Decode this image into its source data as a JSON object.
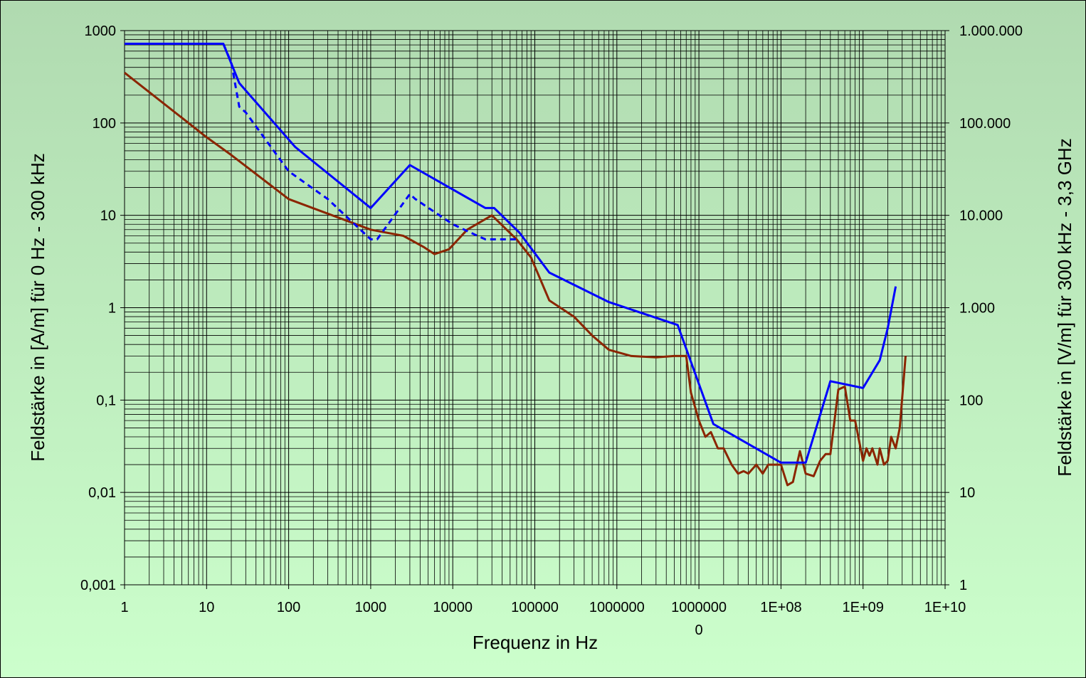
{
  "chart_data": {
    "type": "line",
    "x_label": "Frequenz in Hz",
    "y_label": "Feldstärke in [A/m] für 0 Hz - 300 kHz",
    "y2_label": "Feldstärke in [V/m] für 300 kHz - 3,3 GHz",
    "xscale": "log",
    "yscale": "log",
    "y2scale": "log",
    "grid": true,
    "minor_grid": true,
    "xlim": [
      1,
      10000000000
    ],
    "xticks": [
      1,
      10,
      100,
      1000,
      10000,
      100000,
      1000000,
      10000000,
      {
        "value": 100000000,
        "label": "1E+08"
      },
      {
        "value": 1000000000,
        "label": "1E+09"
      },
      {
        "value": 10000000000,
        "label": "1E+10"
      }
    ],
    "ylim": [
      0.001,
      1000
    ],
    "yticks": [
      {
        "value": 0.001,
        "label": "0,001"
      },
      {
        "value": 0.01,
        "label": "0,01"
      },
      {
        "value": 0.1,
        "label": "0,1"
      },
      1,
      10,
      100,
      1000
    ],
    "y2lim": [
      1,
      1000000
    ],
    "y2ticks": [
      1,
      10,
      100,
      {
        "value": 1000,
        "label": "1.000"
      },
      {
        "value": 10000,
        "label": "10.000"
      },
      {
        "value": 100000,
        "label": "100.000"
      },
      {
        "value": 1000000,
        "label": "1.000.000"
      }
    ],
    "series": [
      {
        "color": "#8b2500",
        "dash": false,
        "x": [
          1,
          10,
          20,
          100,
          1000,
          2500,
          4500,
          6000,
          9000,
          15000,
          30000,
          60000,
          90000,
          150000,
          300000,
          500000,
          800000,
          1500000,
          3000000,
          5000000,
          7000000,
          8000000,
          10000000,
          12000000,
          14000000,
          17000000,
          20000000,
          25000000,
          30000000,
          35000000,
          40000000,
          50000000,
          60000000,
          70000000,
          80000000,
          100000000,
          120000000,
          140000000,
          170000000,
          200000000,
          250000000,
          300000000,
          350000000,
          400000000,
          500000000,
          600000000,
          700000000,
          800000000,
          1000000000,
          1100000000,
          1200000000,
          1300000000,
          1500000000,
          1600000000,
          1800000000,
          2000000000,
          2200000000,
          2500000000,
          2800000000,
          3300000000
        ],
        "values": [
          350,
          70,
          45,
          15,
          7,
          6,
          4.5,
          3.8,
          4.3,
          7,
          10,
          5.5,
          3.5,
          1.2,
          0.8,
          0.5,
          0.35,
          0.3,
          0.29,
          0.3,
          0.3,
          0.12,
          0.06,
          0.04,
          0.045,
          0.03,
          0.03,
          0.02,
          0.016,
          0.017,
          0.016,
          0.02,
          0.016,
          0.02,
          0.02,
          0.02,
          0.012,
          0.013,
          0.028,
          0.016,
          0.015,
          0.022,
          0.026,
          0.026,
          0.13,
          0.14,
          0.06,
          0.06,
          0.022,
          0.03,
          0.025,
          0.03,
          0.02,
          0.03,
          0.02,
          0.022,
          0.04,
          0.03,
          0.05,
          0.3
        ]
      },
      {
        "color": "#0000ff",
        "dash": true,
        "x": [
          1,
          16,
          20,
          25,
          30,
          100,
          300,
          1000,
          1200,
          3000,
          3500,
          10000,
          20000,
          25000,
          60000
        ],
        "values": [
          720,
          720,
          450,
          150,
          130,
          30,
          15,
          5.5,
          5.5,
          17,
          15,
          8,
          6,
          5.5,
          5.5
        ]
      },
      {
        "color": "#0000ff",
        "dash": false,
        "x": [
          1,
          16,
          25,
          120,
          1000,
          3000,
          25000,
          32000,
          65000,
          150000,
          800000,
          5500000,
          15000000,
          100000000,
          200000000,
          400000000,
          1000000000,
          1600000000,
          2000000000,
          2500000000
        ],
        "values": [
          720,
          720,
          270,
          55,
          12,
          35,
          12,
          12,
          6.5,
          2.4,
          1.15,
          0.65,
          0.055,
          0.021,
          0.021,
          0.16,
          0.135,
          0.27,
          0.6,
          1.7
        ]
      }
    ]
  }
}
